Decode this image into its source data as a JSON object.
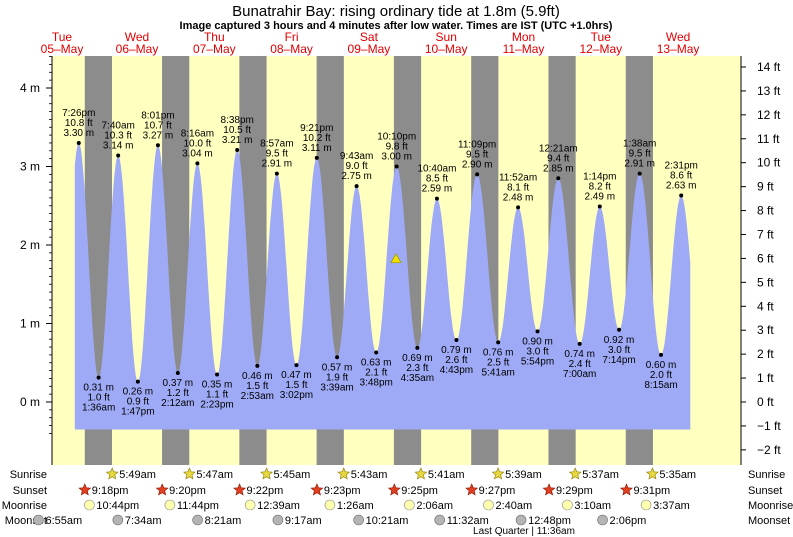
{
  "title": "Bunatrahir Bay: rising  ordinary tide at 1.8m (5.9ft)",
  "subtitle": "Image captured 3 hours and 4 minutes after low water. Times are IST (UTC +1.0hrs)",
  "colors": {
    "tide_fill": "#9eaaf6",
    "day_bg": "#ffffc0",
    "night_band": "#8c8c8c",
    "day_label": "#e00000",
    "marker": "#f0e000"
  },
  "chart_data": {
    "type": "area",
    "left_axis_unit": "m",
    "left_ticks": [
      "4 m",
      "3 m",
      "2 m",
      "1 m",
      "0 m"
    ],
    "left_tick_values": [
      4,
      3,
      2,
      1,
      0
    ],
    "right_ticks": [
      "14 ft",
      "13 ft",
      "12 ft",
      "11 ft",
      "10 ft",
      "9 ft",
      "8 ft",
      "7 ft",
      "6 ft",
      "5 ft",
      "4 ft",
      "3 ft",
      "2 ft",
      "1 ft",
      "0 ft",
      "−1 ft",
      "−2 ft"
    ],
    "right_tick_values": [
      14,
      13,
      12,
      11,
      10,
      9,
      8,
      7,
      6,
      5,
      4,
      3,
      2,
      1,
      0,
      -1,
      -2
    ],
    "days": [
      {
        "dow": "Tue",
        "date": "05–May"
      },
      {
        "dow": "Wed",
        "date": "06–May"
      },
      {
        "dow": "Thu",
        "date": "07–May"
      },
      {
        "dow": "Fri",
        "date": "08–May"
      },
      {
        "dow": "Sat",
        "date": "09–May"
      },
      {
        "dow": "Sun",
        "date": "10–May"
      },
      {
        "dow": "Mon",
        "date": "11–May"
      },
      {
        "dow": "Tue",
        "date": "12–May"
      },
      {
        "dow": "Wed",
        "date": "13–May"
      }
    ],
    "tides": [
      {
        "type": "high",
        "time": "7:26 pm",
        "ft": "10.8 ft",
        "m": "3.30 m",
        "value": 3.3
      },
      {
        "type": "low",
        "time": "1:36 am",
        "ft": "1.0 ft",
        "m": "0.31 m",
        "value": 0.31
      },
      {
        "type": "high",
        "time": "7:40 am",
        "ft": "10.3 ft",
        "m": "3.14 m",
        "value": 3.14
      },
      {
        "type": "low",
        "time": "1:47 pm",
        "ft": "0.9 ft",
        "m": "0.26 m",
        "value": 0.26
      },
      {
        "type": "high",
        "time": "8:01 pm",
        "ft": "10.7 ft",
        "m": "3.27 m",
        "value": 3.27
      },
      {
        "type": "low",
        "time": "2:12 am",
        "ft": "1.2 ft",
        "m": "0.37 m",
        "value": 0.37
      },
      {
        "type": "high",
        "time": "8:16 am",
        "ft": "10.0 ft",
        "m": "3.04 m",
        "value": 3.04
      },
      {
        "type": "low",
        "time": "2:23 pm",
        "ft": "1.1 ft",
        "m": "0.35 m",
        "value": 0.35
      },
      {
        "type": "high",
        "time": "8:38 pm",
        "ft": "10.5 ft",
        "m": "3.21 m",
        "value": 3.21
      },
      {
        "type": "low",
        "time": "2:53 am",
        "ft": "1.5 ft",
        "m": "0.46 m",
        "value": 0.46
      },
      {
        "type": "high",
        "time": "8:57 am",
        "ft": "9.5 ft",
        "m": "2.91 m",
        "value": 2.91
      },
      {
        "type": "low",
        "time": "3:02 pm",
        "ft": "1.5 ft",
        "m": "0.47 m",
        "value": 0.47
      },
      {
        "type": "high",
        "time": "9:21 pm",
        "ft": "10.2 ft",
        "m": "3.11 m",
        "value": 3.11
      },
      {
        "type": "low",
        "time": "3:39 am",
        "ft": "1.9 ft",
        "m": "0.57 m",
        "value": 0.57
      },
      {
        "type": "high",
        "time": "9:43 am",
        "ft": "9.0 ft",
        "m": "2.75 m",
        "value": 2.75
      },
      {
        "type": "low",
        "time": "3:48 pm",
        "ft": "2.1 ft",
        "m": "0.63 m",
        "value": 0.63
      },
      {
        "type": "high",
        "time": "10:10 pm",
        "ft": "9.8 ft",
        "m": "3.00 m",
        "value": 3.0
      },
      {
        "type": "low",
        "time": "4:35 am",
        "ft": "2.3 ft",
        "m": "0.69 m",
        "value": 0.69
      },
      {
        "type": "high",
        "time": "10:40 am",
        "ft": "8.5 ft",
        "m": "2.59 m",
        "value": 2.59
      },
      {
        "type": "low",
        "time": "4:43 pm",
        "ft": "2.6 ft",
        "m": "0.79 m",
        "value": 0.79
      },
      {
        "type": "high",
        "time": "11:09 pm",
        "ft": "9.5 ft",
        "m": "2.90 m",
        "value": 2.9
      },
      {
        "type": "low",
        "time": "5:41 am",
        "ft": "2.5 ft",
        "m": "0.76 m",
        "value": 0.76
      },
      {
        "type": "high",
        "time": "11:52 am",
        "ft": "8.1 ft",
        "m": "2.48 m",
        "value": 2.48
      },
      {
        "type": "low",
        "time": "5:54 pm",
        "ft": "3.0 ft",
        "m": "0.90 m",
        "value": 0.9
      },
      {
        "type": "high",
        "time": "12:21 am",
        "ft": "9.4 ft",
        "m": "2.85 m",
        "value": 2.85
      },
      {
        "type": "low",
        "time": "7:00 am",
        "ft": "2.4 ft",
        "m": "0.74 m",
        "value": 0.74
      },
      {
        "type": "high",
        "time": "1:14 pm",
        "ft": "8.2 ft",
        "m": "2.49 m",
        "value": 2.49
      },
      {
        "type": "low",
        "time": "7:14 pm",
        "ft": "3.0 ft",
        "m": "0.92 m",
        "value": 0.92
      },
      {
        "type": "high",
        "time": "1:38 am",
        "ft": "9.5 ft",
        "m": "2.91 m",
        "value": 2.91
      },
      {
        "type": "low",
        "time": "8:15 am",
        "ft": "2.0 ft",
        "m": "0.60 m",
        "value": 0.6
      },
      {
        "type": "high",
        "time": "2:31 pm",
        "ft": "8.6 ft",
        "m": "2.63 m",
        "value": 2.63
      }
    ],
    "current_level_m": 1.8
  },
  "rows": {
    "sunrise_label": "Sunrise",
    "sunset_label": "Sunset",
    "moonrise_label": "Moonrise",
    "moonset_label": "Moonset",
    "sunrise": [
      "5:49am",
      "5:47am",
      "5:45am",
      "5:43am",
      "5:41am",
      "5:39am",
      "5:37am",
      "5:35am"
    ],
    "sunset": [
      "9:18pm",
      "9:20pm",
      "9:22pm",
      "9:23pm",
      "9:25pm",
      "9:27pm",
      "9:29pm",
      "9:31pm"
    ],
    "moonrise": [
      "10:44pm",
      "11:44pm",
      "12:39am",
      "1:26am",
      "2:06am",
      "2:40am",
      "3:10am",
      "3:37am"
    ],
    "moonset": [
      "6:55am",
      "7:34am",
      "8:21am",
      "9:17am",
      "10:21am",
      "11:32am",
      "12:48pm",
      "2:06pm"
    ],
    "moon_phase": "Last Quarter | 11:36am"
  }
}
